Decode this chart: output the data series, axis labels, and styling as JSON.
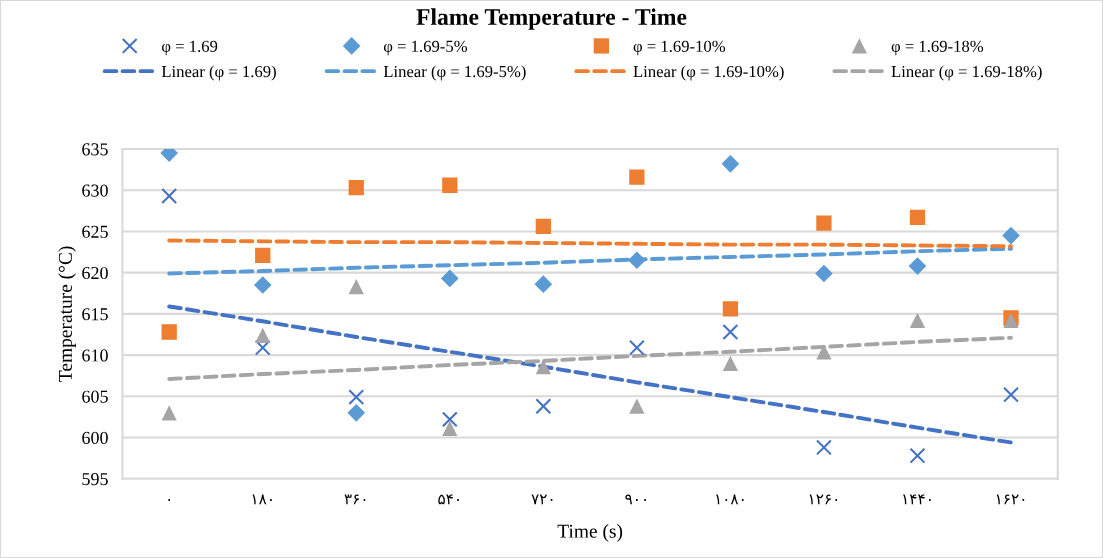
{
  "chart_data": {
    "type": "scatter",
    "title": "Flame Temperature - Time",
    "xlabel": "Time (s)",
    "ylabel": "Temperature (°C)",
    "categories": [
      "۰",
      "۱۸۰",
      "۳۶۰",
      "۵۴۰",
      "۷۲۰",
      "۹۰۰",
      "۱۰۸۰",
      "۱۲۶۰",
      "۱۴۴۰",
      "۱۶۲۰"
    ],
    "ylim": [
      595,
      635
    ],
    "yticks": [
      595,
      600,
      605,
      610,
      615,
      620,
      625,
      630,
      635
    ],
    "grid": "y",
    "legend": "top",
    "series": [
      {
        "name": "φ = 1.69",
        "color": "#4472c4",
        "marker": "cross",
        "values": [
          629.3,
          610.9,
          604.9,
          602.2,
          603.8,
          610.9,
          612.8,
          598.8,
          597.8,
          605.2
        ]
      },
      {
        "name": "φ = 1.69-5%",
        "color": "#5b9bd5",
        "marker": "diamond",
        "values": [
          634.5,
          618.5,
          603.0,
          619.3,
          618.6,
          621.5,
          633.2,
          619.9,
          620.8,
          624.5
        ]
      },
      {
        "name": "φ = 1.69-10%",
        "color": "#ed7d31",
        "marker": "square",
        "values": [
          612.8,
          622.1,
          630.3,
          630.6,
          625.6,
          631.6,
          615.6,
          626.0,
          626.7,
          614.5
        ]
      },
      {
        "name": "φ = 1.69-18%",
        "color": "#a5a5a5",
        "marker": "triangle",
        "values": [
          603.0,
          612.4,
          618.3,
          601.1,
          608.6,
          603.8,
          609.0,
          610.4,
          614.2,
          614.2
        ]
      },
      {
        "name": "Linear (φ = 1.69)",
        "type": "line",
        "line_style": "dashed",
        "color": "#4472c4",
        "values": [
          615.9,
          614.1,
          612.2,
          610.4,
          608.6,
          606.7,
          604.9,
          603.1,
          601.2,
          599.4
        ]
      },
      {
        "name": "Linear (φ = 1.69-5%)",
        "type": "line",
        "line_style": "dashed",
        "color": "#5b9bd5",
        "values": [
          619.9,
          620.2,
          620.6,
          620.9,
          621.2,
          621.6,
          621.9,
          622.2,
          622.6,
          622.9
        ]
      },
      {
        "name": "Linear (φ = 1.69-10%)",
        "type": "line",
        "line_style": "dashed",
        "color": "#ed7d31",
        "values": [
          623.9,
          623.8,
          623.7,
          623.7,
          623.6,
          623.5,
          623.4,
          623.4,
          623.3,
          623.2
        ]
      },
      {
        "name": "Linear (φ = 1.69-18%)",
        "type": "line",
        "line_style": "dashed",
        "color": "#a5a5a5",
        "values": [
          607.1,
          607.7,
          608.2,
          608.8,
          609.3,
          609.9,
          610.4,
          611.0,
          611.6,
          612.1
        ]
      }
    ]
  }
}
